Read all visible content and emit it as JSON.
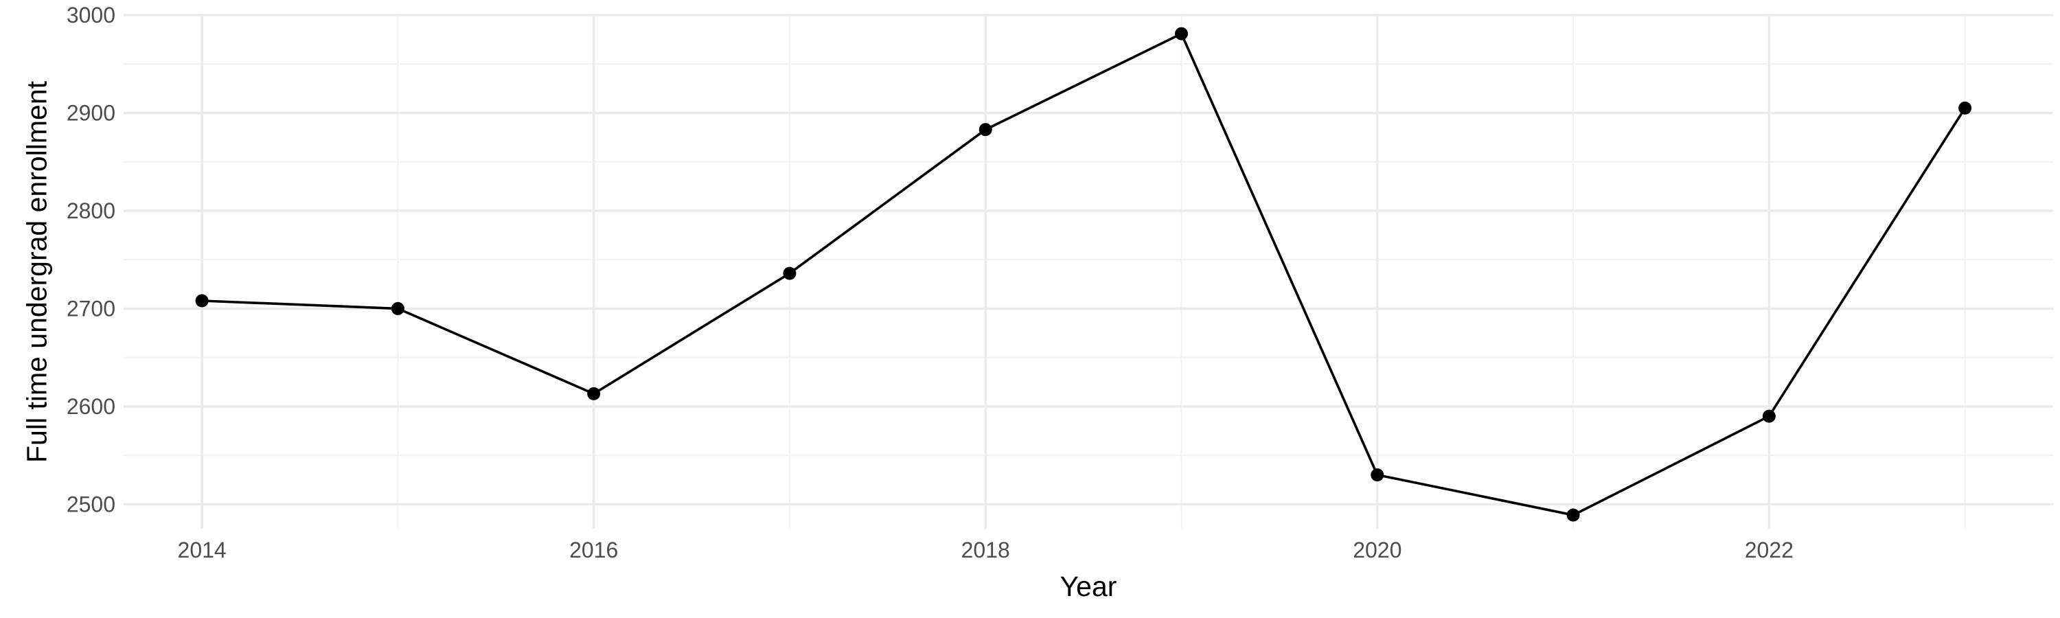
{
  "chart_data": {
    "type": "line",
    "title": "",
    "xlabel": "Year",
    "ylabel": "Full time undergrad enrollment",
    "x": [
      2014,
      2015,
      2016,
      2017,
      2018,
      2019,
      2020,
      2021,
      2022,
      2023
    ],
    "series": [
      {
        "values": [
          2708,
          2700,
          2613,
          2736,
          2883,
          2981,
          2530,
          2489,
          2590,
          2905
        ],
        "color": "#000000"
      }
    ],
    "xlim": [
      2013.6,
      2023.45
    ],
    "ylim": [
      2475,
      3000
    ],
    "xticks": [
      2014,
      2016,
      2018,
      2020,
      2022
    ],
    "xtick_labels": [
      "2014",
      "2016",
      "2018",
      "2020",
      "2022"
    ],
    "yticks": [
      2500,
      2600,
      2700,
      2800,
      2900,
      3000
    ],
    "ytick_labels": [
      "2500",
      "2600",
      "2700",
      "2800",
      "2900",
      "3000"
    ],
    "grid": true,
    "legend": "none",
    "colors": {
      "background": "#ffffff",
      "grid_major": "#ebebeb",
      "grid_minor": "#f2f2f2",
      "tick_label": "#4d4d4d",
      "axis_title": "#000000",
      "line": "#000000"
    }
  }
}
